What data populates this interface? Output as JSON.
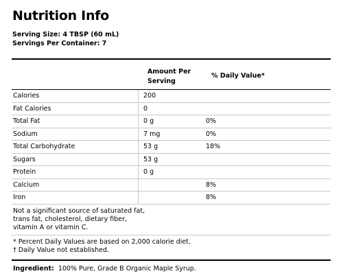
{
  "title": "Nutrition Info",
  "serving_size": "Serving Size: 4 TBSP (60 mL)",
  "servings_per_container": "Servings Per Container: 7",
  "table": {
    "header_amount_line1": "Amount Per",
    "header_amount_line2": "Serving",
    "header_daily_value": "% Daily Value*",
    "rows": [
      {
        "name": "Calories",
        "amount": "200",
        "dv": ""
      },
      {
        "name": "Fat Calories",
        "amount": "0",
        "dv": ""
      },
      {
        "name": "Total Fat",
        "amount": "0 g",
        "dv": "0%"
      },
      {
        "name": "Sodium",
        "amount": "7 mg",
        "dv": "0%"
      },
      {
        "name": "Total Carbohydrate",
        "amount": "53 g",
        "dv": "18%"
      },
      {
        "name": "Sugars",
        "amount": "53 g",
        "dv": ""
      },
      {
        "name": "Protein",
        "amount": "0 g",
        "dv": ""
      },
      {
        "name": "Calcium",
        "amount": "",
        "dv": "8%"
      },
      {
        "name": "Iron",
        "amount": "",
        "dv": "8%"
      }
    ],
    "note_lines": [
      "Not a significant source of saturated fat,",
      "trans fat, cholesterol, dietary fiber,",
      "vitamin A or vitamin C."
    ],
    "footnote_1": "* Percent Daily Values are based on 2,000 calorie diet.",
    "footnote_2": "† Daily Value not established."
  },
  "ingredient_label": "Ingredient:",
  "ingredient_text": "100% Pure, Grade B Organic Maple Syrup."
}
